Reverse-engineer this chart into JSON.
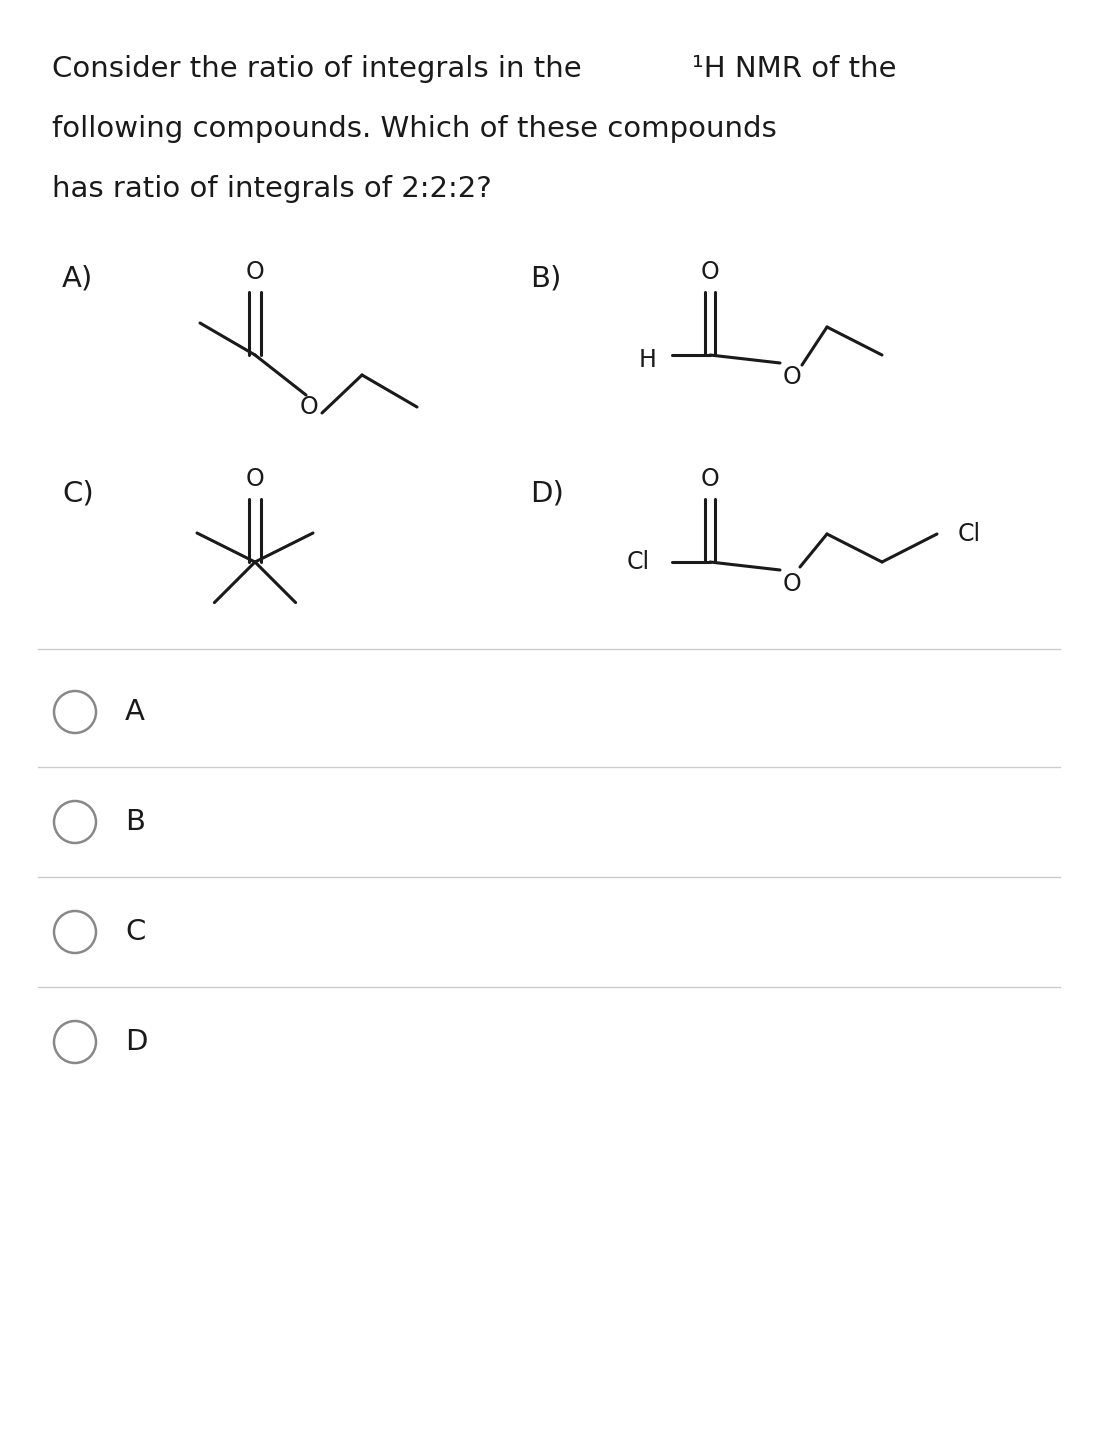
{
  "bg_color": "#ffffff",
  "text_color": "#000000",
  "line_color": "#1a1a1a",
  "sep_color": "#cccccc",
  "radio_color": "#888888",
  "title_fontsize": 21,
  "label_fontsize": 21,
  "struct_fontsize": 17,
  "bond_lw": 2.2,
  "fig_w": 10.98,
  "fig_h": 14.37,
  "choices": [
    "A",
    "B",
    "C",
    "D"
  ]
}
